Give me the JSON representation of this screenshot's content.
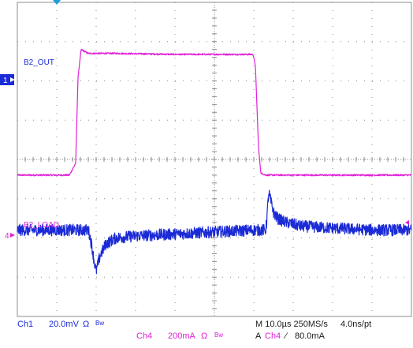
{
  "chart_data": {
    "type": "line",
    "title": "",
    "xlabel": "",
    "ylabel": "",
    "grid": true,
    "divisions": {
      "x": 10,
      "y": 8
    },
    "x_unit": "µs",
    "xlim": [
      0,
      100
    ],
    "series": [
      {
        "name": "B2_OUT",
        "channel": "1",
        "color": "#1a2ad6",
        "unit": "mV",
        "scale_per_div": 20.0,
        "ylim": [
          -80,
          80
        ],
        "x": [
          0,
          18,
          18.3,
          18.9,
          19.5,
          20,
          21,
          22.5,
          25,
          30,
          40,
          50,
          60,
          63,
          63.2,
          63.8,
          64.4,
          65,
          66,
          68,
          72,
          80,
          90,
          100
        ],
        "y": [
          -36,
          -36,
          -38,
          -44,
          -52,
          -57,
          -49,
          -43,
          -40,
          -39,
          -38,
          -37,
          -36,
          -36,
          -33,
          -17,
          -22,
          -27,
          -30,
          -32,
          -34,
          -35,
          -36,
          -36
        ],
        "noise_pp": 6
      },
      {
        "name": "B2_LOAD",
        "channel": "4",
        "color": "#e020d8",
        "unit": "mA",
        "scale_per_div": 200,
        "ylim": [
          -800,
          800
        ],
        "x": [
          0,
          13.2,
          14.8,
          15.4,
          16.2,
          18,
          25,
          40,
          55,
          59.8,
          60.4,
          61.2,
          61.8,
          63,
          70,
          85,
          100
        ],
        "y": [
          -80,
          -80,
          -20,
          420,
          560,
          540,
          540,
          535,
          535,
          535,
          480,
          60,
          -70,
          -80,
          -80,
          -80,
          -80
        ],
        "noise_pp": 8
      }
    ],
    "annotations": {
      "ch1_label": "B2_OUT",
      "ch4_label": "B2_LOAD",
      "ch1_marker": "1",
      "ch4_marker": "4",
      "ch1_zero_level": 0,
      "ch4_zero_level": 0,
      "trigger_position_x": 10,
      "trigger_level": 80.0,
      "trigger_level_unit": "mA"
    }
  },
  "status": {
    "ch1_name": "Ch1",
    "ch1_scale": "20.0mV",
    "ch1_omega": "Ω",
    "ch1_bw": "Bw",
    "ch4_name": "Ch4",
    "ch4_scale": "200mA",
    "ch4_omega": "Ω",
    "ch4_bw": "Bw",
    "timebase": "M 10.0µs 250MS/s",
    "resolution": "4.0ns/pt",
    "trigger_prefix": "A",
    "trigger_channel": "Ch4",
    "trigger_slope": "∕",
    "trigger_level": "80.0mA"
  },
  "colors": {
    "ch1": "#1a2ad6",
    "ch4": "#e020d8",
    "grid": "#8c8c8c",
    "trigger_marker": "#1a9fd8"
  }
}
